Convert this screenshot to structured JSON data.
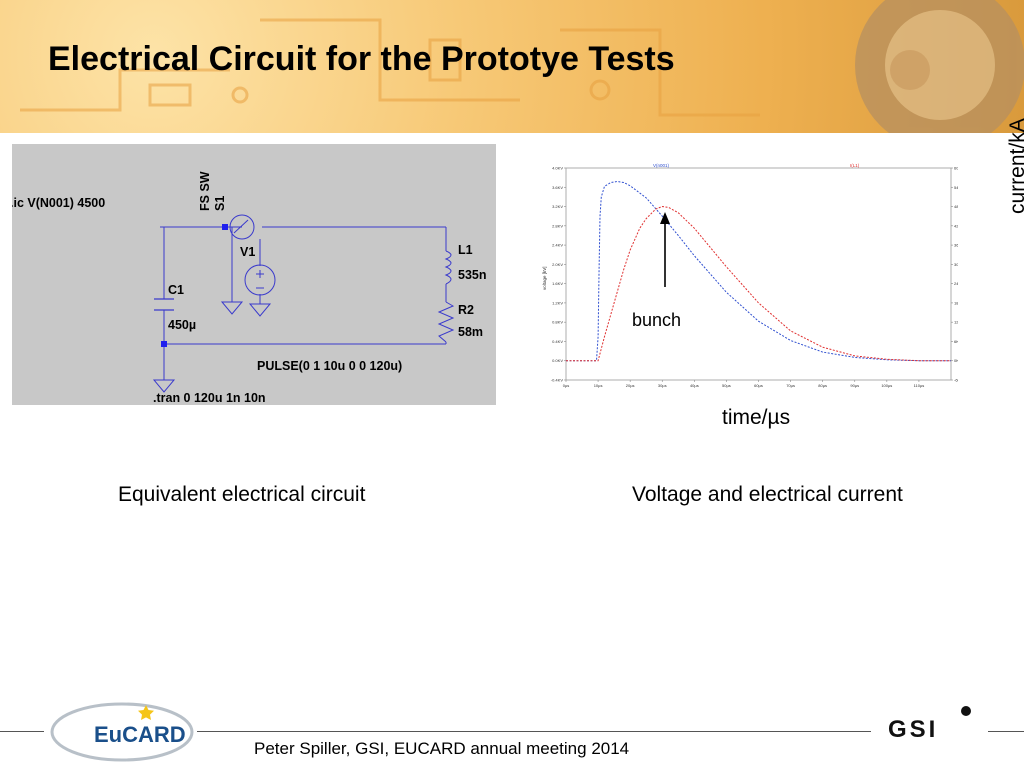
{
  "slide": {
    "title": "Electrical Circuit for the Prototye Tests",
    "footer": "Peter Spiller, GSI, EUCARD annual meeting 2014",
    "logos": {
      "left": "EuCARD",
      "right": "GSI"
    }
  },
  "circuit": {
    "directive_ic": ".ic V(N001) 4500",
    "directive_tran": ".tran 0 120u 1n 10n",
    "switch_model": "FS SW",
    "switch_name": "S1",
    "source_name": "V1",
    "source_value": "PULSE(0 1 10u 0 0 120u)",
    "capacitor_name": "C1",
    "capacitor_value": "450µ",
    "inductor_name": "L1",
    "inductor_value": "535n",
    "resistor_name": "R2",
    "resistor_value": "58m",
    "caption": "Equivalent electrical circuit"
  },
  "plot": {
    "caption": "Voltage and electrical current",
    "annotation": "bunch",
    "x_label_outer": "time/µs",
    "y2_label_outer": "current/kA",
    "legend_voltage": "V(n001)",
    "legend_current": "I(L1)",
    "y_axis_inner": "voltage [kV]",
    "colors": {
      "voltage": "#3050d0",
      "current": "#e03030",
      "axis": "#888888"
    }
  },
  "chart_data": {
    "type": "line",
    "x_unit": "µs",
    "xlim": [
      0,
      120
    ],
    "x_ticks": [
      "0µs",
      "10µs",
      "20µs",
      "30µs",
      "40µs",
      "50µs",
      "60µs",
      "70µs",
      "80µs",
      "90µs",
      "100µs",
      "110µs"
    ],
    "y_left_ticks": [
      "-0.4KV",
      "0.0KV",
      "0.4KV",
      "0.8KV",
      "1.2KV",
      "1.6KV",
      "2.0KV",
      "2.4KV",
      "2.8KV",
      "3.2KV",
      "3.6KV",
      "4.0KV"
    ],
    "y_right_ticks": [
      "-6KA",
      "0KA",
      "6KA",
      "12KA",
      "18KA",
      "24KA",
      "30KA",
      "36KA",
      "42KA",
      "48KA",
      "54KA",
      "60KA"
    ],
    "ylim_left": [
      -0.4,
      4.0
    ],
    "series": [
      {
        "name": "V(n001)",
        "x": [
          0,
          9.5,
          10,
          10.3,
          10.6,
          11,
          12,
          14,
          16,
          18,
          20,
          25,
          30,
          35,
          40,
          50,
          60,
          70,
          80,
          90,
          100,
          110,
          120
        ],
        "y": [
          0,
          0,
          0.5,
          1.8,
          3.0,
          3.4,
          3.62,
          3.7,
          3.72,
          3.7,
          3.63,
          3.38,
          3.0,
          2.6,
          2.18,
          1.42,
          0.82,
          0.42,
          0.18,
          0.07,
          0.02,
          0.0,
          0.0
        ]
      },
      {
        "name": "I(L1)",
        "x": [
          0,
          10,
          12,
          15,
          18,
          20,
          23,
          25,
          28,
          30,
          32,
          35,
          40,
          50,
          60,
          70,
          80,
          90,
          100,
          110,
          120
        ],
        "y": [
          0,
          0,
          0.5,
          1.2,
          1.9,
          2.3,
          2.75,
          2.95,
          3.15,
          3.2,
          3.18,
          3.07,
          2.75,
          1.95,
          1.2,
          0.62,
          0.28,
          0.1,
          0.03,
          0.0,
          0.0
        ]
      }
    ],
    "grid": false,
    "legend": "top"
  }
}
